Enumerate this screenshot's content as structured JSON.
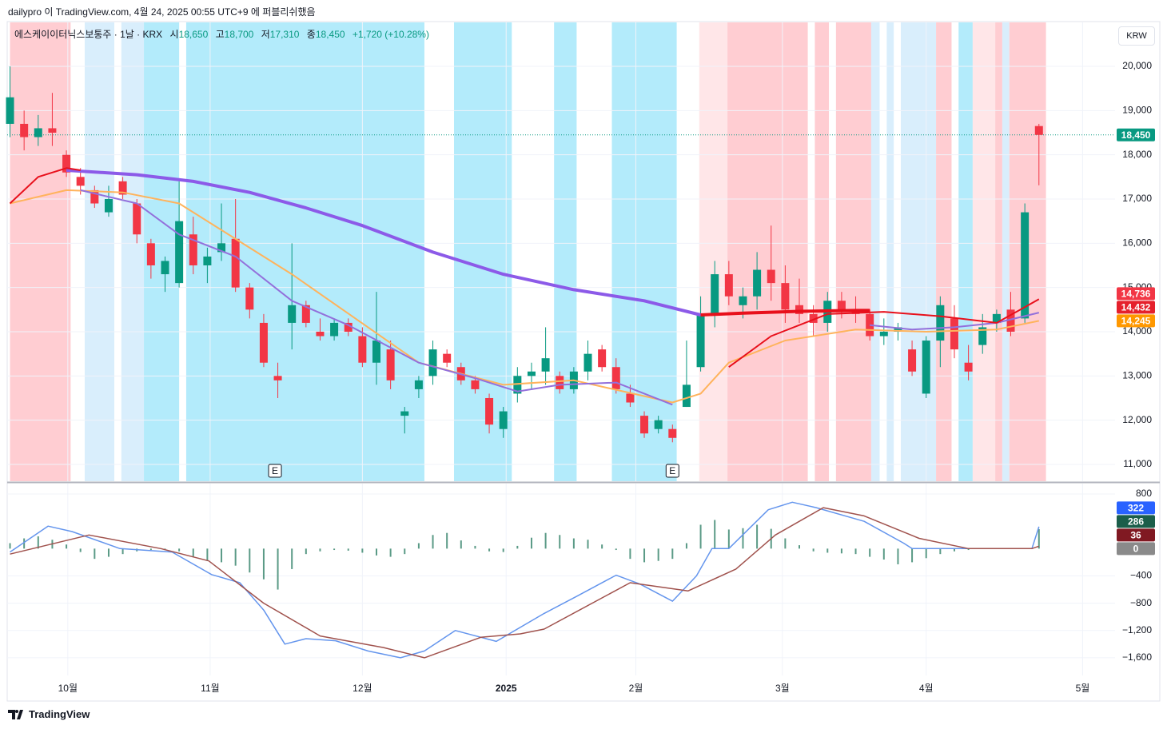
{
  "header": {
    "publisher": "dailypro 이 TradingView.com, 4월 24, 2025 00:55 UTC+9 에 퍼블리쉬했음",
    "brand": "TradingView"
  },
  "chart_data": [
    {
      "type": "candlestick",
      "title": "에스케이이터닉스보통주 · 1날 · KRX",
      "legend": [
        {
          "label": "시",
          "value": "18,650"
        },
        {
          "label": "고",
          "value": "18,700"
        },
        {
          "label": "저",
          "value": "17,310"
        },
        {
          "label": "종",
          "value": "18,450"
        }
      ],
      "change": "+1,720 (+10.28%)",
      "currency": "KRW",
      "up_color": "#089981",
      "down_color": "#f23645",
      "open": [
        18700,
        18700,
        18400,
        18600,
        18000,
        17500,
        17200,
        16700,
        17400,
        16900,
        16000,
        15300,
        15100,
        16200,
        15500,
        15800,
        16100,
        15000,
        14200,
        13000,
        14200,
        14600,
        14000,
        13900,
        14200,
        13900,
        13300,
        13600,
        12100,
        12700,
        13000,
        13500,
        13200,
        12900,
        12500,
        11800,
        12600,
        13000,
        13100,
        13000,
        12700,
        13100,
        13600,
        13200,
        12600,
        12100,
        11800,
        11800,
        12300,
        13200,
        14400,
        15300,
        14600,
        14800,
        15400,
        15100,
        14600,
        14400,
        14200,
        14700,
        14500,
        14400,
        13900,
        14000,
        13600,
        12600,
        13800,
        14300,
        13300,
        13700,
        14200,
        14500,
        14300,
        18650
      ],
      "high": [
        20000,
        19000,
        18900,
        19400,
        18100,
        17700,
        17300,
        17300,
        17500,
        17000,
        16100,
        15700,
        17400,
        16600,
        15900,
        16900,
        17000,
        15100,
        14400,
        13300,
        16000,
        14700,
        14300,
        14300,
        14300,
        14100,
        14900,
        13800,
        12300,
        13000,
        13800,
        13600,
        13300,
        13000,
        12600,
        12300,
        13200,
        13300,
        14100,
        13100,
        13200,
        13800,
        13700,
        13400,
        12800,
        12200,
        12100,
        11900,
        13800,
        14800,
        15600,
        15600,
        15000,
        15800,
        16400,
        15500,
        15200,
        14600,
        14900,
        14900,
        14800,
        14500,
        14300,
        14200,
        13800,
        13900,
        14800,
        14600,
        13700,
        14400,
        14500,
        14900,
        16900,
        18700
      ],
      "low": [
        18400,
        18100,
        18200,
        18200,
        17500,
        17100,
        16800,
        16600,
        17000,
        16000,
        15200,
        14900,
        15000,
        15300,
        15100,
        15600,
        14900,
        14300,
        13200,
        12500,
        13600,
        14100,
        13800,
        13800,
        13900,
        13200,
        12800,
        12700,
        11700,
        12500,
        12800,
        13200,
        12800,
        12600,
        11700,
        11600,
        12400,
        12700,
        12800,
        12600,
        12600,
        12900,
        13100,
        12600,
        12300,
        11600,
        11700,
        11500,
        12300,
        13100,
        14100,
        14600,
        14300,
        14500,
        14700,
        14200,
        14200,
        13900,
        14000,
        14300,
        14200,
        13800,
        13700,
        13800,
        13000,
        12500,
        13200,
        13400,
        12900,
        13500,
        14000,
        13900,
        14200,
        17310
      ],
      "close": [
        19300,
        18400,
        18600,
        18500,
        17600,
        17300,
        16900,
        17000,
        17100,
        16200,
        15500,
        15600,
        16500,
        15500,
        15700,
        16000,
        15000,
        14500,
        13300,
        12900,
        14600,
        14200,
        13900,
        14200,
        14000,
        13300,
        13800,
        12900,
        12200,
        12900,
        13600,
        13300,
        12900,
        12700,
        11900,
        12200,
        13000,
        13100,
        13400,
        12700,
        13100,
        13500,
        13200,
        12700,
        12400,
        11700,
        12000,
        11600,
        12800,
        14400,
        15300,
        14800,
        14800,
        15400,
        15100,
        14500,
        14400,
        14200,
        14700,
        14500,
        14400,
        13900,
        14000,
        14100,
        13100,
        13800,
        14600,
        13600,
        13100,
        14100,
        14400,
        14000,
        16700,
        18450
      ],
      "lines": [
        {
          "color": "#ffb35c",
          "width": 2,
          "x": [
            0,
            4,
            8,
            12,
            20,
            29,
            35,
            40,
            47,
            49,
            51,
            55,
            60,
            65,
            70,
            73
          ],
          "values": [
            16900,
            17200,
            17150,
            16900,
            15300,
            13300,
            12800,
            12900,
            12400,
            12600,
            13300,
            13800,
            14050,
            14000,
            14050,
            14245
          ]
        },
        {
          "color": "#9370db",
          "width": 2,
          "x": [
            5,
            9,
            12,
            16,
            20,
            24,
            29,
            33,
            36,
            39,
            43,
            47,
            null,
            61,
            64,
            67,
            70,
            73
          ],
          "values": [
            17200,
            16900,
            16200,
            15700,
            14700,
            14150,
            13300,
            12950,
            12650,
            12800,
            12850,
            12350,
            null,
            14150,
            14050,
            14100,
            14200,
            14432
          ]
        },
        {
          "color": "#8c5ae8",
          "width": 4,
          "x": [
            4,
            9,
            13,
            17,
            21,
            25,
            30,
            35,
            40,
            45,
            49
          ],
          "values": [
            17650,
            17550,
            17400,
            17150,
            16800,
            16400,
            15800,
            15300,
            14950,
            14700,
            14380
          ]
        },
        {
          "color": "#e8101b",
          "width": 4,
          "x": [
            49,
            52,
            56,
            60,
            61
          ],
          "values": [
            14380,
            14420,
            14460,
            14480,
            14480
          ]
        },
        {
          "color": "#e8101b",
          "width": 2,
          "x": [
            0,
            2,
            4,
            5,
            null,
            51,
            54,
            58,
            62,
            66,
            70,
            73
          ],
          "values": [
            16900,
            17500,
            17700,
            17650,
            null,
            13200,
            13900,
            14400,
            14450,
            14350,
            14200,
            14736
          ]
        }
      ],
      "background_zones": [
        {
          "x": [
            0,
            4.3
          ],
          "color": "#ffcdd2"
        },
        {
          "x": [
            5.3,
            7.4
          ],
          "color": "#d9eefc"
        },
        {
          "x": [
            7.9,
            9.5
          ],
          "color": "#d9eefc"
        },
        {
          "x": [
            9.5,
            12.0
          ],
          "color": "#b3ebfb"
        },
        {
          "x": [
            12.5,
            29.4
          ],
          "color": "#b3ebfb"
        },
        {
          "x": [
            31.5,
            35.6
          ],
          "color": "#b3ebfb"
        },
        {
          "x": [
            38.6,
            40.2
          ],
          "color": "#b3ebfb"
        },
        {
          "x": [
            42.7,
            47.3
          ],
          "color": "#b3ebfb"
        },
        {
          "x": [
            48.9,
            50.9
          ],
          "color": "#ffe6e8"
        },
        {
          "x": [
            50.9,
            56.6
          ],
          "color": "#ffcdd2"
        },
        {
          "x": [
            57.1,
            58.1
          ],
          "color": "#ffcdd2"
        },
        {
          "x": [
            58.6,
            61.1
          ],
          "color": "#ffcdd2"
        },
        {
          "x": [
            61.1,
            61.7
          ],
          "color": "#d9eefc"
        },
        {
          "x": [
            62.2,
            62.7
          ],
          "color": "#d9eefc"
        },
        {
          "x": [
            63.2,
            65.7
          ],
          "color": "#d9eefc"
        },
        {
          "x": [
            65.7,
            66.8
          ],
          "color": "#ffcdd2"
        },
        {
          "x": [
            67.3,
            68.3
          ],
          "color": "#b3ebfb"
        },
        {
          "x": [
            68.3,
            69.9
          ],
          "color": "#ffe6e8"
        },
        {
          "x": [
            69.9,
            70.4
          ],
          "color": "#ffcdd2"
        },
        {
          "x": [
            70.4,
            70.9
          ],
          "color": "#d9eefc"
        },
        {
          "x": [
            70.9,
            73.5
          ],
          "color": "#ffcdd2"
        }
      ],
      "events": [
        {
          "x": 18.8,
          "label": "E"
        },
        {
          "x": 47.0,
          "label": "E"
        }
      ],
      "xlim": [
        -0.2,
        78.4
      ],
      "xticks": [
        {
          "value": 4.1,
          "label": "10월"
        },
        {
          "value": 14.2,
          "label": "11월"
        },
        {
          "value": 25.0,
          "label": "12월"
        },
        {
          "value": 35.2,
          "label": "2025"
        },
        {
          "value": 44.4,
          "label": "2월"
        },
        {
          "value": 54.8,
          "label": "3월"
        },
        {
          "value": 65.0,
          "label": "4월"
        },
        {
          "value": 76.1,
          "label": "5월"
        }
      ],
      "ylim": [
        10620,
        20994
      ],
      "yticks": [
        {
          "value": 11000,
          "label": "11,000"
        },
        {
          "value": 12000,
          "label": "12,000"
        },
        {
          "value": 13000,
          "label": "13,000"
        },
        {
          "value": 14000,
          "label": "14,000"
        },
        {
          "value": 15000,
          "label": "15,000"
        },
        {
          "value": 16000,
          "label": "16,000"
        },
        {
          "value": 17000,
          "label": "17,000"
        },
        {
          "value": 18000,
          "label": "18,000"
        },
        {
          "value": 19000,
          "label": "19,000"
        },
        {
          "value": 20000,
          "label": "20,000"
        }
      ],
      "grid": true,
      "last_price_line": true,
      "price_labels": [
        {
          "value": 18450,
          "label": "18,450",
          "color": "#089981"
        },
        {
          "value": 14736,
          "label": "14,736",
          "color": "#f23645"
        },
        {
          "value": 14432,
          "label": "14,432",
          "color": "#e5202c"
        },
        {
          "value": 14245,
          "label": "14,245",
          "color": "#ff9800"
        }
      ]
    },
    {
      "type": "macd",
      "lines": [
        {
          "color": "#6495ed",
          "width": 1.5,
          "x": [
            0,
            2.7,
            4.4,
            7.8,
            11.5,
            14.3,
            16.3,
            18,
            19.5,
            21,
            23.1,
            25.4,
            27.7,
            29.4,
            31.6,
            34.5,
            37.9,
            40.2,
            43,
            44.7,
            47,
            48.7,
            49.8,
            51,
            53.8,
            55.5,
            57.2,
            60.6,
            63.4,
            64,
            72.5,
            73
          ],
          "values": [
            -50,
            330,
            250,
            0,
            -50,
            -380,
            -500,
            -900,
            -1400,
            -1320,
            -1350,
            -1500,
            -1600,
            -1500,
            -1200,
            -1360,
            -950,
            -700,
            -390,
            -520,
            -770,
            -400,
            0,
            0,
            570,
            680,
            600,
            400,
            80,
            0,
            0,
            322
          ]
        },
        {
          "color": "#a0524d",
          "width": 1.5,
          "x": [
            0,
            5.6,
            10.7,
            14.1,
            18,
            22,
            26.5,
            29.4,
            33.4,
            36.2,
            37.9,
            44,
            48.1,
            51.5,
            54.3,
            57.7,
            60.6,
            64.5,
            68,
            72.5,
            73
          ],
          "values": [
            -80,
            200,
            0,
            -180,
            -800,
            -1280,
            -1450,
            -1600,
            -1300,
            -1250,
            -1180,
            -500,
            -620,
            -300,
            200,
            600,
            480,
            150,
            0,
            0,
            36
          ]
        }
      ],
      "histogram": {
        "color": "#5a9a86",
        "values": [
          80,
          150,
          180,
          130,
          60,
          -50,
          -150,
          -120,
          -80,
          -40,
          -20,
          -10,
          -40,
          -120,
          -180,
          -200,
          -250,
          -350,
          -450,
          -600,
          -300,
          -80,
          -40,
          -20,
          -30,
          -60,
          -100,
          -120,
          -80,
          80,
          200,
          230,
          120,
          40,
          -40,
          -50,
          40,
          160,
          230,
          200,
          150,
          130,
          60,
          -20,
          -150,
          -200,
          -180,
          -150,
          80,
          350,
          420,
          280,
          300,
          350,
          290,
          150,
          50,
          -40,
          -60,
          -70,
          -80,
          -120,
          -160,
          -230,
          -200,
          -140,
          -80,
          -40,
          -20,
          0,
          0,
          0,
          0,
          286
        ]
      },
      "ylim": [
        -1859,
        953
      ],
      "yticks": [
        800,
        {
          "value": -400,
          "label": "−400"
        },
        {
          "value": -800,
          "label": "−800"
        },
        {
          "value": -1200,
          "label": "−1,200"
        },
        {
          "value": -1600,
          "label": "−1,600"
        }
      ],
      "grid": true,
      "price_labels": [
        {
          "value": 322,
          "label": "322",
          "color": "#2962ff"
        },
        {
          "value": 286,
          "label": "286",
          "color": "#1b5e4a"
        },
        {
          "value": 36,
          "label": "36",
          "color": "#801922"
        },
        {
          "value": 0,
          "label": "0",
          "color": "#8a8a8a"
        }
      ]
    }
  ]
}
